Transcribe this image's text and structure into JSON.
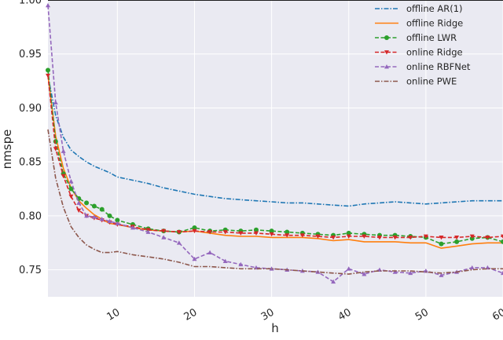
{
  "chart_data": {
    "type": "line",
    "title": "",
    "xlabel": "h",
    "ylabel": "nmspe",
    "xlim": [
      1,
      60
    ],
    "ylim": [
      0.725,
      1.0
    ],
    "xticks": [
      10,
      20,
      30,
      40,
      50,
      60
    ],
    "yticks": [
      0.75,
      0.8,
      0.85,
      0.9,
      0.95,
      1.0
    ],
    "ytick_labels": [
      "0.75",
      "0.80",
      "0.85",
      "0.90",
      "0.95",
      "1.00"
    ],
    "grid": true,
    "legend_position": "top-right",
    "reference_line": {
      "y": 1.0,
      "color": "#000000"
    },
    "series": [
      {
        "name": "offline AR(1)",
        "color": "#1f77b4",
        "linestyle": "dashdot",
        "marker": "none",
        "x": [
          1,
          2,
          3,
          4,
          5,
          6,
          7,
          8,
          9,
          10,
          12,
          14,
          16,
          18,
          20,
          22,
          24,
          26,
          28,
          30,
          32,
          34,
          36,
          38,
          40,
          42,
          44,
          46,
          48,
          50,
          52,
          54,
          56,
          58,
          60
        ],
        "values": [
          0.93,
          0.893,
          0.873,
          0.861,
          0.855,
          0.85,
          0.846,
          0.843,
          0.84,
          0.836,
          0.833,
          0.83,
          0.826,
          0.823,
          0.82,
          0.818,
          0.816,
          0.815,
          0.814,
          0.813,
          0.812,
          0.812,
          0.811,
          0.81,
          0.809,
          0.811,
          0.812,
          0.813,
          0.812,
          0.811,
          0.812,
          0.813,
          0.814,
          0.814,
          0.814
        ]
      },
      {
        "name": "offline Ridge",
        "color": "#ff7f0e",
        "linestyle": "solid",
        "marker": "none",
        "x": [
          1,
          2,
          3,
          4,
          5,
          6,
          7,
          8,
          9,
          10,
          12,
          14,
          16,
          18,
          20,
          22,
          24,
          26,
          28,
          30,
          32,
          34,
          36,
          38,
          40,
          42,
          44,
          46,
          48,
          50,
          52,
          54,
          56,
          58,
          60
        ],
        "values": [
          0.93,
          0.874,
          0.844,
          0.826,
          0.814,
          0.807,
          0.801,
          0.797,
          0.793,
          0.792,
          0.789,
          0.787,
          0.786,
          0.785,
          0.786,
          0.784,
          0.782,
          0.781,
          0.781,
          0.78,
          0.78,
          0.78,
          0.779,
          0.777,
          0.778,
          0.776,
          0.776,
          0.776,
          0.775,
          0.775,
          0.77,
          0.772,
          0.774,
          0.775,
          0.775
        ]
      },
      {
        "name": "offline LWR",
        "color": "#2ca02c",
        "linestyle": "dashed",
        "marker": "circle",
        "x": [
          1,
          2,
          3,
          4,
          5,
          6,
          7,
          8,
          9,
          10,
          12,
          14,
          16,
          18,
          20,
          22,
          24,
          26,
          28,
          30,
          32,
          34,
          36,
          38,
          40,
          42,
          44,
          46,
          48,
          50,
          52,
          54,
          56,
          58,
          60
        ],
        "values": [
          0.935,
          0.869,
          0.839,
          0.825,
          0.816,
          0.812,
          0.809,
          0.806,
          0.8,
          0.796,
          0.792,
          0.788,
          0.786,
          0.785,
          0.789,
          0.786,
          0.787,
          0.786,
          0.787,
          0.786,
          0.785,
          0.784,
          0.783,
          0.782,
          0.784,
          0.783,
          0.782,
          0.782,
          0.781,
          0.78,
          0.774,
          0.776,
          0.779,
          0.78,
          0.776
        ]
      },
      {
        "name": "online Ridge",
        "color": "#d62728",
        "linestyle": "dashed",
        "marker": "triangle-down",
        "x": [
          1,
          2,
          3,
          4,
          5,
          6,
          7,
          8,
          9,
          10,
          12,
          14,
          16,
          18,
          20,
          22,
          24,
          26,
          28,
          30,
          32,
          34,
          36,
          38,
          40,
          42,
          44,
          46,
          48,
          50,
          52,
          54,
          56,
          58,
          60
        ],
        "values": [
          0.93,
          0.862,
          0.837,
          0.818,
          0.805,
          0.8,
          0.798,
          0.796,
          0.794,
          0.792,
          0.79,
          0.787,
          0.786,
          0.785,
          0.786,
          0.785,
          0.785,
          0.784,
          0.784,
          0.783,
          0.782,
          0.782,
          0.781,
          0.78,
          0.781,
          0.781,
          0.78,
          0.78,
          0.78,
          0.781,
          0.78,
          0.78,
          0.781,
          0.78,
          0.781
        ]
      },
      {
        "name": "online RBFNet",
        "color": "#9467bd",
        "linestyle": "dashed",
        "marker": "triangle-up",
        "x": [
          1,
          2,
          3,
          4,
          5,
          6,
          7,
          8,
          9,
          10,
          12,
          14,
          16,
          18,
          20,
          22,
          24,
          26,
          28,
          30,
          32,
          34,
          36,
          38,
          40,
          42,
          44,
          46,
          48,
          50,
          52,
          54,
          56,
          58,
          60
        ],
        "values": [
          0.995,
          0.905,
          0.86,
          0.832,
          0.812,
          0.8,
          0.799,
          0.797,
          0.795,
          0.793,
          0.789,
          0.785,
          0.78,
          0.775,
          0.76,
          0.766,
          0.758,
          0.755,
          0.752,
          0.751,
          0.75,
          0.749,
          0.748,
          0.739,
          0.751,
          0.746,
          0.75,
          0.748,
          0.747,
          0.749,
          0.745,
          0.748,
          0.752,
          0.752,
          0.747
        ]
      },
      {
        "name": "online PWE",
        "color": "#8c564b",
        "linestyle": "dashdot",
        "marker": "none",
        "x": [
          1,
          2,
          3,
          4,
          5,
          6,
          7,
          8,
          9,
          10,
          12,
          14,
          16,
          18,
          20,
          22,
          24,
          26,
          28,
          30,
          32,
          34,
          36,
          38,
          40,
          42,
          44,
          46,
          48,
          50,
          52,
          54,
          56,
          58,
          60
        ],
        "values": [
          0.88,
          0.835,
          0.808,
          0.79,
          0.78,
          0.773,
          0.769,
          0.766,
          0.766,
          0.767,
          0.764,
          0.762,
          0.76,
          0.757,
          0.753,
          0.753,
          0.752,
          0.751,
          0.751,
          0.751,
          0.75,
          0.749,
          0.748,
          0.747,
          0.746,
          0.748,
          0.749,
          0.749,
          0.749,
          0.748,
          0.747,
          0.748,
          0.75,
          0.751,
          0.751
        ]
      }
    ]
  }
}
